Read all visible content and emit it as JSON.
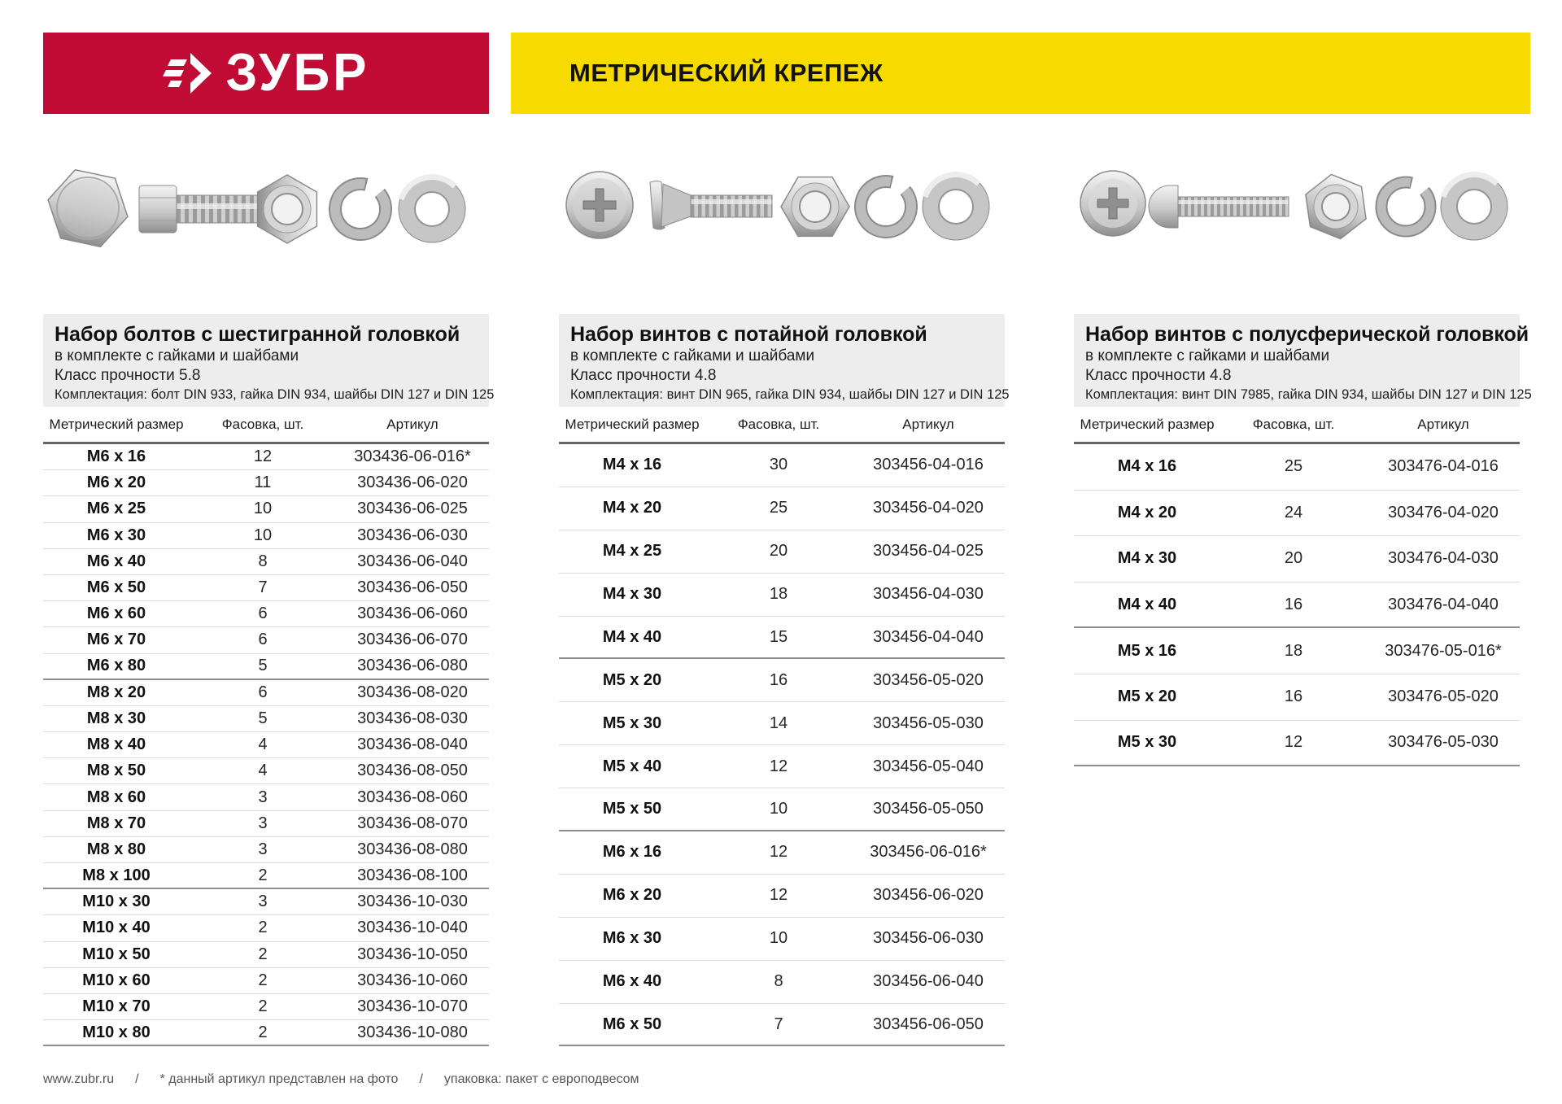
{
  "header": {
    "brand": "ЗУБР",
    "banner_title": "МЕТРИЧЕСКИЙ КРЕПЕЖ"
  },
  "colors": {
    "brand_red": "#c00c35",
    "banner_yellow": "#f7da00",
    "info_block_grey": "#ededed"
  },
  "columns": [
    "Метрический размер",
    "Фасовка, шт.",
    "Артикул"
  ],
  "tables": [
    {
      "title": "Набор болтов с шестигранной головкой",
      "subtitle": "в комплекте с гайками и шайбами",
      "strength": "Класс прочности 5.8",
      "kit": "Комплектация: болт DIN 933, гайка DIN 934, шайбы DIN 127 и DIN 125",
      "photo": "hex-head-bolt-set",
      "groups": [
        [
          [
            "M6 x 16",
            "12",
            "303436-06-016*"
          ],
          [
            "M6 x 20",
            "11",
            "303436-06-020"
          ],
          [
            "M6 x 25",
            "10",
            "303436-06-025"
          ],
          [
            "M6 x 30",
            "10",
            "303436-06-030"
          ],
          [
            "M6 x 40",
            "8",
            "303436-06-040"
          ],
          [
            "M6 x 50",
            "7",
            "303436-06-050"
          ],
          [
            "M6 x 60",
            "6",
            "303436-06-060"
          ],
          [
            "M6 x 70",
            "6",
            "303436-06-070"
          ],
          [
            "M6 x 80",
            "5",
            "303436-06-080"
          ]
        ],
        [
          [
            "M8 x 20",
            "6",
            "303436-08-020"
          ],
          [
            "M8 x 30",
            "5",
            "303436-08-030"
          ],
          [
            "M8 x 40",
            "4",
            "303436-08-040"
          ],
          [
            "M8 x 50",
            "4",
            "303436-08-050"
          ],
          [
            "M8 x 60",
            "3",
            "303436-08-060"
          ],
          [
            "M8 x 70",
            "3",
            "303436-08-070"
          ],
          [
            "M8 x 80",
            "3",
            "303436-08-080"
          ],
          [
            "M8 x 100",
            "2",
            "303436-08-100"
          ]
        ],
        [
          [
            "M10 x 30",
            "3",
            "303436-10-030"
          ],
          [
            "M10 x 40",
            "2",
            "303436-10-040"
          ],
          [
            "M10 x 50",
            "2",
            "303436-10-050"
          ],
          [
            "M10 x 60",
            "2",
            "303436-10-060"
          ],
          [
            "M10 x 70",
            "2",
            "303436-10-070"
          ],
          [
            "M10 x 80",
            "2",
            "303436-10-080"
          ]
        ]
      ]
    },
    {
      "title": "Набор винтов с потайной головкой",
      "subtitle": "в комплекте с гайками и шайбами",
      "strength": "Класс прочности 4.8",
      "kit": "Комплектация: винт DIN 965, гайка DIN 934, шайбы DIN 127 и DIN 125",
      "photo": "countersunk-screw-set",
      "groups": [
        [
          [
            "M4 x 16",
            "30",
            "303456-04-016"
          ],
          [
            "M4 x 20",
            "25",
            "303456-04-020"
          ],
          [
            "M4 x 25",
            "20",
            "303456-04-025"
          ],
          [
            "M4 x 30",
            "18",
            "303456-04-030"
          ],
          [
            "M4 x 40",
            "15",
            "303456-04-040"
          ]
        ],
        [
          [
            "M5 x 20",
            "16",
            "303456-05-020"
          ],
          [
            "M5 x 30",
            "14",
            "303456-05-030"
          ],
          [
            "M5 x 40",
            "12",
            "303456-05-040"
          ],
          [
            "M5 x 50",
            "10",
            "303456-05-050"
          ]
        ],
        [
          [
            "M6 x 16",
            "12",
            "303456-06-016*"
          ],
          [
            "M6 x 20",
            "12",
            "303456-06-020"
          ],
          [
            "M6 x 30",
            "10",
            "303456-06-030"
          ],
          [
            "M6 x 40",
            "8",
            "303456-06-040"
          ],
          [
            "M6 x 50",
            "7",
            "303456-06-050"
          ]
        ]
      ]
    },
    {
      "title": "Набор винтов с полусферической головкой",
      "subtitle": "в комплекте с гайками и шайбами",
      "strength": "Класс прочности 4.8",
      "kit": "Комплектация: винт DIN 7985, гайка DIN 934, шайбы DIN 127 и DIN 125",
      "photo": "pan-head-screw-set",
      "groups": [
        [
          [
            "M4 x 16",
            "25",
            "303476-04-016"
          ],
          [
            "M4 x 20",
            "24",
            "303476-04-020"
          ],
          [
            "M4 x 30",
            "20",
            "303476-04-030"
          ],
          [
            "M4 x 40",
            "16",
            "303476-04-040"
          ]
        ],
        [
          [
            "M5 x 16",
            "18",
            "303476-05-016*"
          ],
          [
            "M5 x 20",
            "16",
            "303476-05-020"
          ],
          [
            "M5 x 30",
            "12",
            "303476-05-030"
          ]
        ]
      ]
    }
  ],
  "footer": {
    "site": "www.zubr.ru",
    "sep": "/",
    "note": "* данный артикул представлен на фото",
    "packaging": "упаковка: пакет с европодвесом"
  }
}
